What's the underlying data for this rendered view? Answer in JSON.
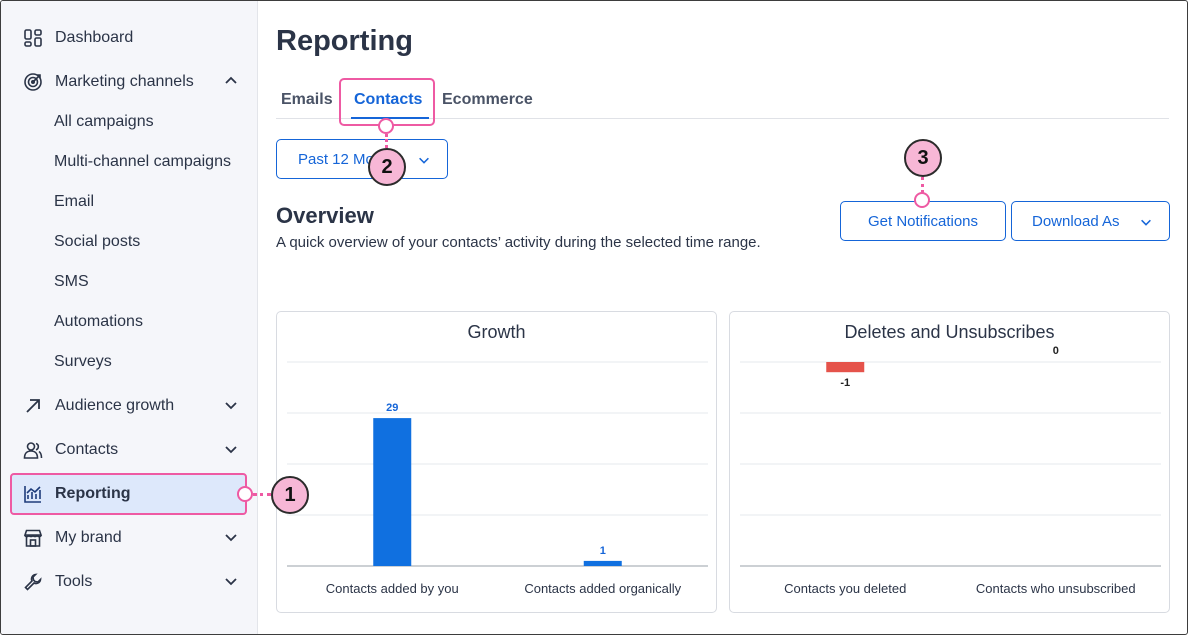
{
  "sidebar": {
    "items": [
      {
        "label": "Dashboard",
        "icon": "dashboard-icon"
      },
      {
        "label": "Marketing channels",
        "icon": "target-icon",
        "expanded": true,
        "children": [
          "All campaigns",
          "Multi-channel campaigns",
          "Email",
          "Social posts",
          "SMS",
          "Automations",
          "Surveys"
        ]
      },
      {
        "label": "Audience growth",
        "icon": "arrow-up-right-icon"
      },
      {
        "label": "Contacts",
        "icon": "contacts-icon"
      },
      {
        "label": "Reporting",
        "icon": "reporting-icon",
        "active": true
      },
      {
        "label": "My brand",
        "icon": "store-icon"
      },
      {
        "label": "Tools",
        "icon": "wrench-icon"
      }
    ]
  },
  "main": {
    "title": "Reporting",
    "tabs": [
      "Emails",
      "Contacts",
      "Ecommerce"
    ],
    "active_tab": "Contacts",
    "date_range": "Past 12 Months",
    "overview_title": "Overview",
    "overview_desc": "A quick overview of your contacts’ activity during the selected time range.",
    "get_notifications": "Get Notifications",
    "download_as": "Download As"
  },
  "callouts": [
    "1",
    "2",
    "3"
  ],
  "colors": {
    "accent": "#1565d8",
    "bar_blue": "#1070e0",
    "bar_red": "#e5534b",
    "highlight": "#ee5aa3",
    "callout_fill": "#f7b7d6"
  },
  "chart_data": [
    {
      "type": "bar",
      "title": "Growth",
      "categories": [
        "Contacts added by you",
        "Contacts added organically"
      ],
      "values": [
        29,
        1
      ],
      "ylim": [
        0,
        40
      ],
      "grid": true
    },
    {
      "type": "bar",
      "title": "Deletes and Unsubscribes",
      "categories": [
        "Contacts you deleted",
        "Contacts who unsubscribed"
      ],
      "values": [
        -1,
        0
      ],
      "ylim": [
        -20,
        0
      ],
      "grid": true
    }
  ]
}
